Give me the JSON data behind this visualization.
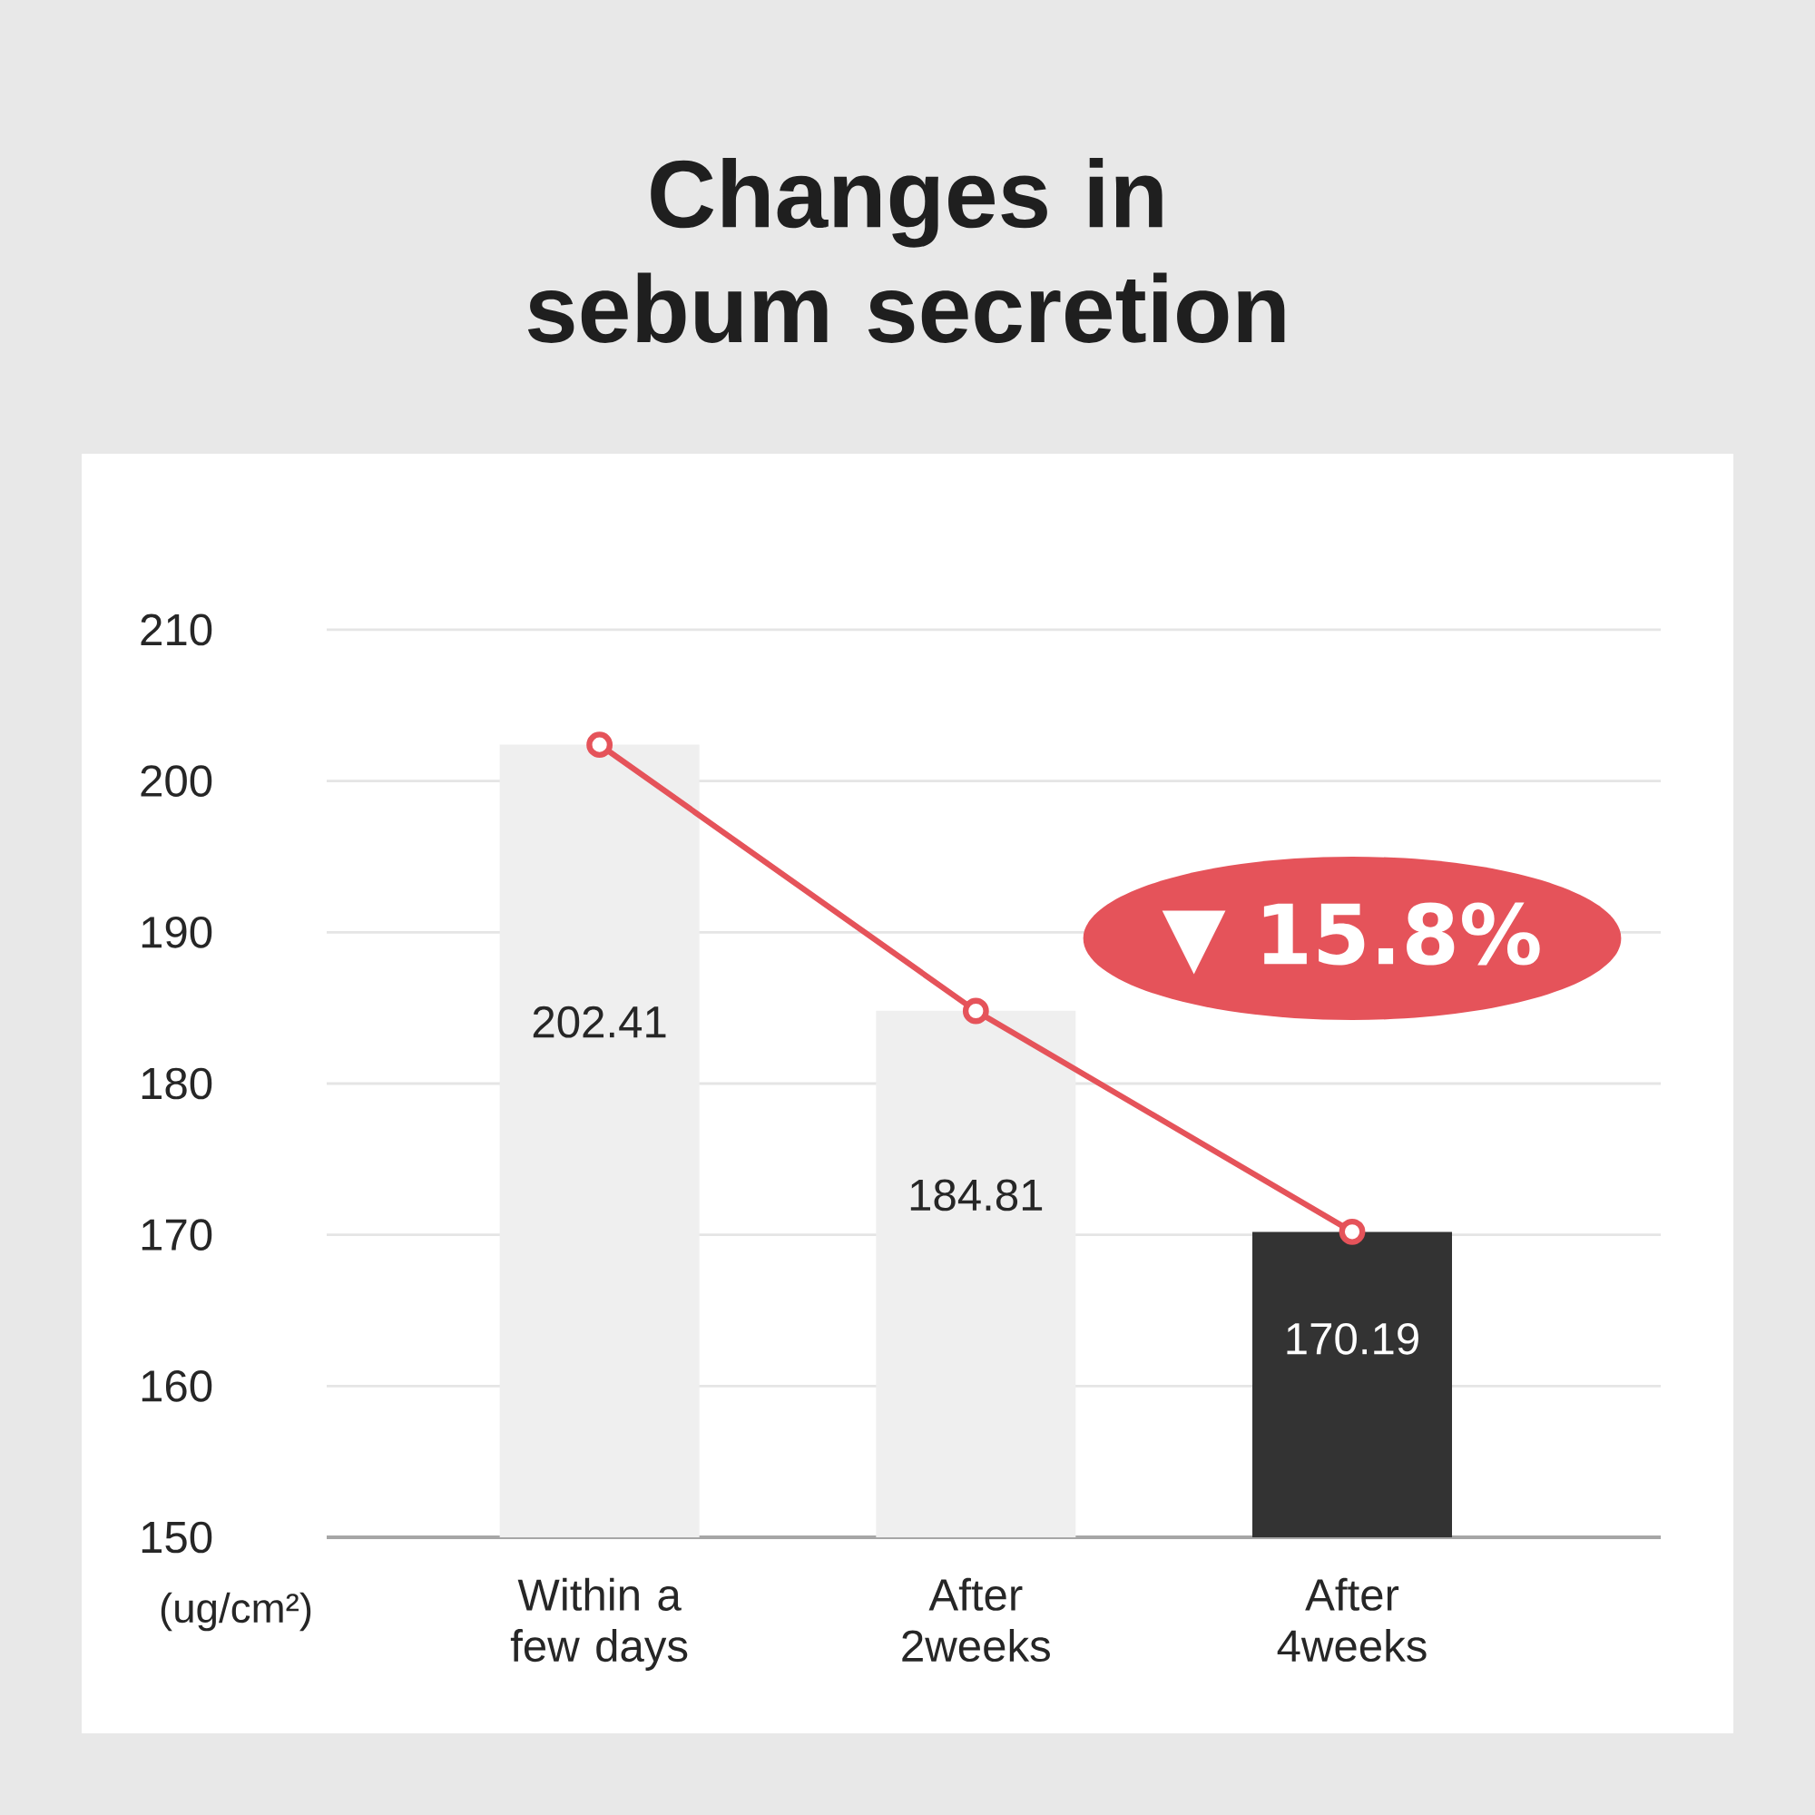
{
  "chart_data": {
    "type": "bar",
    "title": "Changes in sebum secretion",
    "ylabel": "(ug/cm²)",
    "categories": [
      "Within a few days",
      "After 2weeks",
      "After 4weeks"
    ],
    "series": [
      {
        "colors": [
          "#efefef",
          "#efefef",
          "#333333"
        ],
        "values": [
          202.41,
          184.81,
          170.19
        ]
      },
      {
        "type": "line",
        "color": "#e5535a",
        "values": [
          202.4,
          184.8,
          170.2
        ],
        "value_labels": [
          null,
          null,
          null
        ]
      }
    ],
    "marker": "circle",
    "line_style": "solid",
    "ylim": [
      150,
      210
    ],
    "yticks": [
      150,
      160,
      170,
      180,
      190,
      200,
      210
    ],
    "grid": "y",
    "data_labels": true,
    "annotations": [
      "▼ 15.8%"
    ]
  }
}
